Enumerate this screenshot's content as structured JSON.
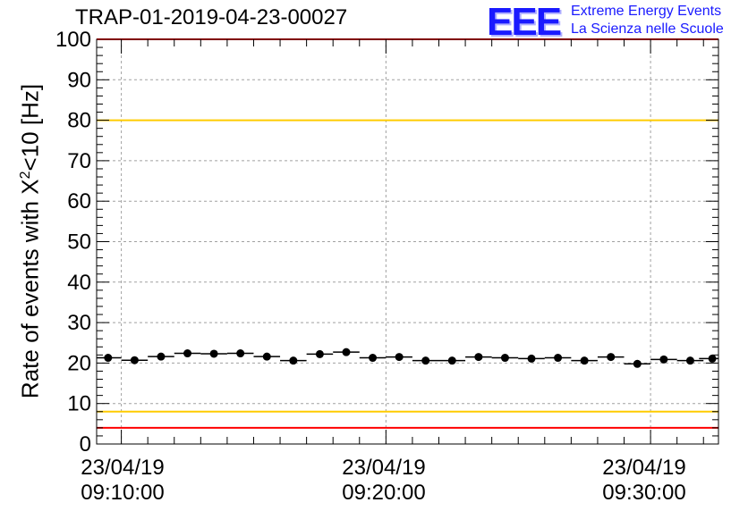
{
  "header": {
    "run_title": "TRAP-01-2019-04-23-00027"
  },
  "logo": {
    "mark": "EEE",
    "line1": "Extreme Energy Events",
    "line2": "La Scienza nelle Scuole",
    "color": "#1a1aff"
  },
  "chart_data": {
    "type": "scatter",
    "title": "TRAP-01-2019-04-23-00027",
    "ylabel_prefix": "Rate of events with ",
    "ylabel_symbol": "X",
    "ylabel_sup": "2",
    "ylabel_suffix": "<10 [Hz]",
    "xlabel": "",
    "ylim": [
      0,
      100
    ],
    "yticks": [
      0,
      10,
      20,
      30,
      40,
      50,
      60,
      70,
      80,
      90,
      100
    ],
    "xticks": [
      {
        "t": "09:10:00",
        "date": "23/04/19",
        "time": "09:10:00"
      },
      {
        "t": "09:20:00",
        "date": "23/04/19",
        "time": "09:20:00"
      },
      {
        "t": "09:30:00",
        "date": "23/04/19",
        "time": "09:30:00"
      }
    ],
    "xlim": [
      "09:09:04",
      "09:32:34"
    ],
    "grid": true,
    "reference_lines": [
      {
        "y": 100,
        "color": "#ff0000"
      },
      {
        "y": 80,
        "color": "#ffcc00"
      },
      {
        "y": 8,
        "color": "#ffcc00"
      },
      {
        "y": 4,
        "color": "#ff0000"
      }
    ],
    "series": [
      {
        "marker_color": "#000000",
        "bin_width_seconds": 60,
        "points": [
          {
            "x": "09:09:30",
            "y": 21.3
          },
          {
            "x": "09:10:30",
            "y": 20.7
          },
          {
            "x": "09:11:30",
            "y": 21.6
          },
          {
            "x": "09:12:30",
            "y": 22.4
          },
          {
            "x": "09:13:30",
            "y": 22.3
          },
          {
            "x": "09:14:30",
            "y": 22.4
          },
          {
            "x": "09:15:30",
            "y": 21.6
          },
          {
            "x": "09:16:30",
            "y": 20.6
          },
          {
            "x": "09:17:30",
            "y": 22.2
          },
          {
            "x": "09:18:30",
            "y": 22.7
          },
          {
            "x": "09:19:30",
            "y": 21.3
          },
          {
            "x": "09:20:30",
            "y": 21.5
          },
          {
            "x": "09:21:30",
            "y": 20.6
          },
          {
            "x": "09:22:30",
            "y": 20.6
          },
          {
            "x": "09:23:30",
            "y": 21.5
          },
          {
            "x": "09:24:30",
            "y": 21.3
          },
          {
            "x": "09:25:30",
            "y": 21.1
          },
          {
            "x": "09:26:30",
            "y": 21.3
          },
          {
            "x": "09:27:30",
            "y": 20.6
          },
          {
            "x": "09:28:30",
            "y": 21.5
          },
          {
            "x": "09:29:30",
            "y": 19.8
          },
          {
            "x": "09:30:30",
            "y": 20.9
          },
          {
            "x": "09:31:30",
            "y": 20.6
          },
          {
            "x": "09:32:20",
            "y": 21.1
          }
        ]
      }
    ]
  }
}
